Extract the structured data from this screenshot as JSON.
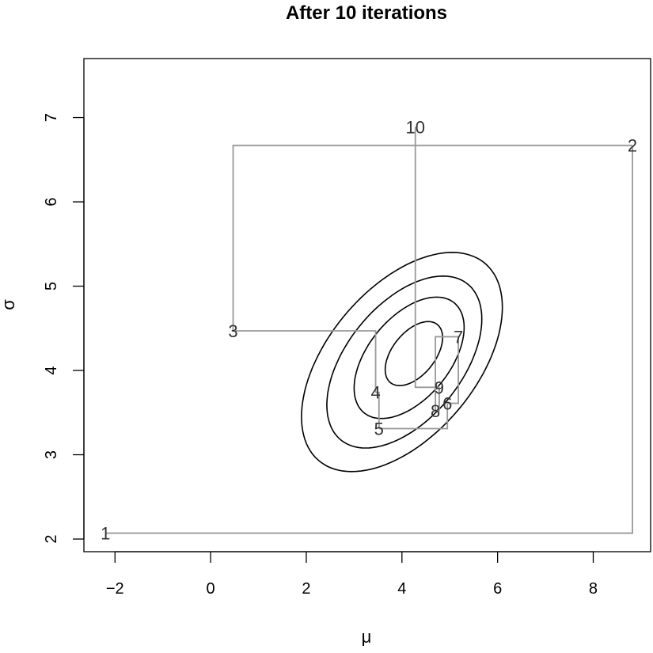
{
  "chart_data": {
    "type": "line",
    "title": "After 10 iterations",
    "xlabel": "μ",
    "ylabel": "σ",
    "xlim": [
      -2.65,
      9.2
    ],
    "ylim": [
      1.85,
      7.7
    ],
    "x_ticks": [
      -2,
      0,
      2,
      4,
      6,
      8
    ],
    "x_tick_labels": [
      "−2",
      "0",
      "2",
      "4",
      "6",
      "8"
    ],
    "y_ticks": [
      2,
      3,
      4,
      5,
      6,
      7
    ],
    "y_tick_labels": [
      "2",
      "3",
      "4",
      "5",
      "6",
      "7"
    ],
    "grid": false,
    "legend": "none",
    "path_color": "#999999",
    "contour_color": "#000000",
    "series": [
      {
        "points": [
          {
            "label": "1",
            "x": -2.2,
            "y": 2.07
          },
          {
            "label": "2",
            "x": 8.82,
            "y": 6.67
          },
          {
            "label": "3",
            "x": 0.47,
            "y": 4.47
          },
          {
            "label": "4",
            "x": 3.45,
            "y": 3.74
          },
          {
            "label": "5",
            "x": 3.52,
            "y": 3.31
          },
          {
            "label": "6",
            "x": 4.95,
            "y": 3.61
          },
          {
            "label": "7",
            "x": 5.18,
            "y": 4.4
          },
          {
            "label": "8",
            "x": 4.7,
            "y": 3.52
          },
          {
            "label": "9",
            "x": 4.78,
            "y": 3.8
          },
          {
            "label": "10",
            "x": 4.28,
            "y": 6.89
          }
        ]
      }
    ],
    "contours": [
      {
        "cx": 4.25,
        "cy": 4.2,
        "sx": 0.6,
        "sy": 0.38,
        "rho": 0.5
      },
      {
        "cx": 4.15,
        "cy": 4.15,
        "sx": 1.15,
        "sy": 0.72,
        "rho": 0.5
      },
      {
        "cx": 4.05,
        "cy": 4.1,
        "sx": 1.62,
        "sy": 1.02,
        "rho": 0.5
      },
      {
        "cx": 4.0,
        "cy": 4.1,
        "sx": 2.1,
        "sy": 1.3,
        "rho": 0.5
      }
    ]
  }
}
